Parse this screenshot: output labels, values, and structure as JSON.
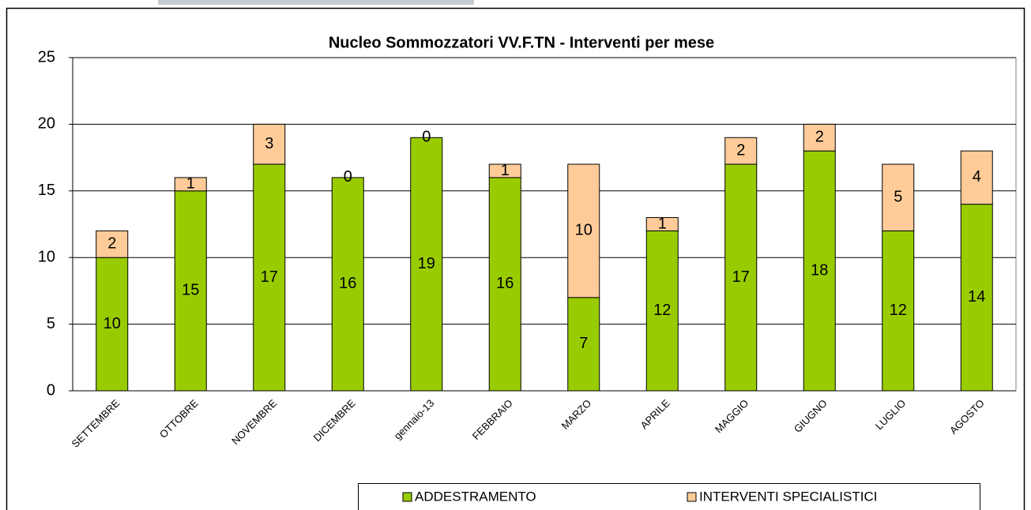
{
  "chart_data": {
    "type": "stacked_bar",
    "title": "Nucleo Sommozzatori VV.F.TN  - Interventi per mese",
    "categories": [
      "SETTEMBRE",
      "OTTOBRE",
      "NOVEMBRE",
      "DICEMBRE",
      "gennaio-13",
      "FEBBRAIO",
      "MARZO",
      "APRILE",
      "MAGGIO",
      "GIUGNO",
      "LUGLIO",
      "AGOSTO"
    ],
    "series": [
      {
        "name": "ADDESTRAMENTO",
        "color": "#99cc00",
        "values": [
          10,
          15,
          17,
          16,
          19,
          16,
          7,
          12,
          17,
          18,
          12,
          14
        ]
      },
      {
        "name": "INTERVENTI SPECIALISTICI",
        "color": "#ffcc99",
        "values": [
          2,
          1,
          3,
          0,
          0,
          1,
          10,
          1,
          2,
          2,
          5,
          4
        ]
      }
    ],
    "ylim": [
      0,
      25
    ],
    "yticks": [
      0,
      5,
      10,
      15,
      20,
      25
    ],
    "grid": true,
    "legend": "bottom"
  }
}
